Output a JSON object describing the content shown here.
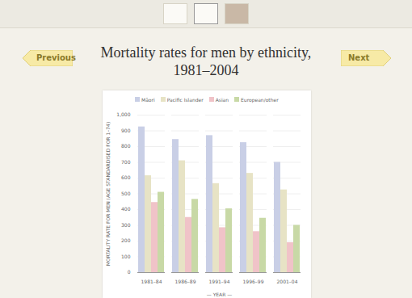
{
  "navigation": {
    "previous": "Previous",
    "next": "Next"
  },
  "chart_data": {
    "type": "bar",
    "title": "Mortality rates for men by ethnicity, 1981–2004",
    "x_label": "— YEAR —",
    "y_label": "MORTALITY RATE FOR MEN (AGE STANDARDISED FOR 1–74)",
    "categories": [
      "1981–84",
      "1986–89",
      "1991–94",
      "1996–99",
      "2001–04"
    ],
    "series": [
      {
        "name": "Māori",
        "color": "#c9cfe6",
        "values": [
          925,
          845,
          870,
          825,
          700
        ]
      },
      {
        "name": "Pacific Islander",
        "color": "#e7e3c5",
        "values": [
          615,
          710,
          565,
          630,
          525
        ]
      },
      {
        "name": "Asian",
        "color": "#f0c3c8",
        "values": [
          445,
          350,
          285,
          260,
          190
        ]
      },
      {
        "name": "European/other",
        "color": "#c8d9a6",
        "values": [
          510,
          465,
          405,
          345,
          300
        ]
      }
    ],
    "ylim": [
      0,
      1000
    ],
    "yticks": [
      0,
      100,
      200,
      300,
      400,
      500,
      600,
      700,
      800,
      900,
      {
        "value": 1000,
        "label": "1,000"
      }
    ],
    "grid": true,
    "legend": "top"
  }
}
